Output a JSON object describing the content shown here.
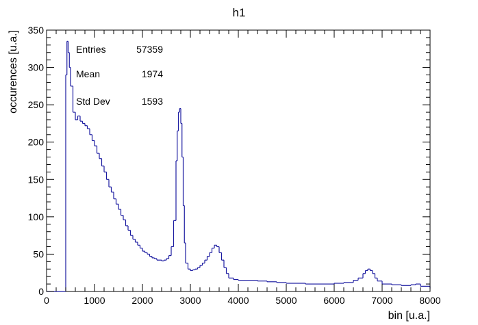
{
  "chart_data": {
    "type": "histogram",
    "title": "h1",
    "xlabel": "bin [u.a.]",
    "ylabel": "occurences [u.a.]",
    "xlim": [
      0,
      8000
    ],
    "ylim": [
      0,
      350
    ],
    "xticks": [
      "0",
      "1000",
      "2000",
      "3000",
      "4000",
      "5000",
      "6000",
      "7000",
      "8000"
    ],
    "yticks": [
      "0",
      "50",
      "100",
      "150",
      "200",
      "250",
      "300",
      "350"
    ],
    "grid": false,
    "legend": "none",
    "line_color": "#1a1aa0",
    "stats": {
      "entries_label": "Entries",
      "entries_value": "57359",
      "mean_label": "Mean",
      "mean_value": "1974",
      "stddev_label": "Std Dev",
      "stddev_value": "1593"
    },
    "x": [
      0,
      375,
      400,
      425,
      450,
      475,
      500,
      550,
      600,
      650,
      700,
      750,
      800,
      850,
      900,
      950,
      1000,
      1050,
      1100,
      1150,
      1200,
      1250,
      1300,
      1350,
      1400,
      1450,
      1500,
      1550,
      1600,
      1650,
      1700,
      1750,
      1800,
      1850,
      1900,
      1950,
      2000,
      2050,
      2100,
      2150,
      2200,
      2250,
      2300,
      2350,
      2400,
      2450,
      2500,
      2550,
      2600,
      2650,
      2700,
      2725,
      2750,
      2775,
      2800,
      2825,
      2850,
      2875,
      2900,
      2950,
      3000,
      3050,
      3100,
      3150,
      3200,
      3250,
      3300,
      3350,
      3400,
      3450,
      3500,
      3550,
      3600,
      3650,
      3700,
      3750,
      3800,
      3900,
      4000,
      4200,
      4400,
      4600,
      4800,
      5000,
      5200,
      5400,
      5600,
      5800,
      6000,
      6200,
      6400,
      6500,
      6600,
      6650,
      6700,
      6750,
      6800,
      6850,
      6900,
      7000,
      7200,
      7400,
      7600,
      7700,
      7800,
      8000
    ],
    "values": [
      0,
      0,
      290,
      335,
      320,
      300,
      275,
      240,
      230,
      235,
      228,
      225,
      222,
      218,
      210,
      202,
      195,
      185,
      178,
      168,
      160,
      150,
      140,
      133,
      124,
      117,
      110,
      102,
      96,
      88,
      82,
      75,
      70,
      66,
      62,
      58,
      54,
      52,
      50,
      47,
      45,
      44,
      42,
      42,
      41,
      42,
      44,
      48,
      60,
      95,
      175,
      215,
      240,
      245,
      225,
      180,
      115,
      65,
      38,
      30,
      28,
      29,
      30,
      32,
      35,
      38,
      42,
      47,
      52,
      58,
      62,
      60,
      52,
      42,
      32,
      24,
      18,
      16,
      15,
      15,
      14,
      13,
      12,
      11,
      11,
      10,
      10,
      10,
      11,
      12,
      15,
      18,
      24,
      28,
      30,
      28,
      24,
      18,
      14,
      10,
      9,
      8,
      9,
      10,
      7,
      4
    ]
  }
}
